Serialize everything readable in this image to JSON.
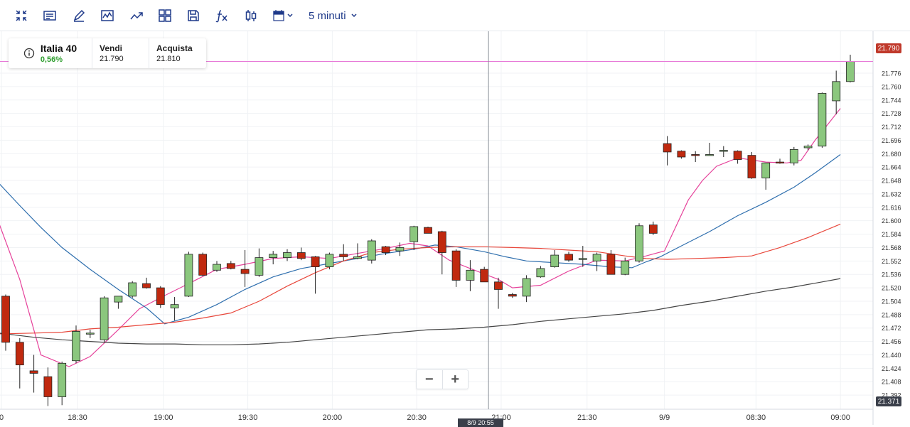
{
  "toolbar": {
    "icons": [
      "collapse-icon",
      "notes-icon",
      "draw-icon",
      "chart-type-icon",
      "trend-icon",
      "layout-icon",
      "save-icon",
      "indicator-icon",
      "candle-style-icon",
      "calendar-icon"
    ],
    "timeframe_label": "5 minuti"
  },
  "instrument": {
    "name": "Italia 40",
    "change": "0,56%",
    "sell_label": "Vendi",
    "sell_value": "21.790",
    "buy_label": "Acquista",
    "buy_value": "21.810"
  },
  "price_tag": "21.790",
  "low_tag": "21.371",
  "crosshair_time": "8/9 20:55",
  "zoom": {
    "minus": "−",
    "plus": "+"
  },
  "colors": {
    "up": "#8bc77e",
    "down": "#c0290f",
    "sma_fast": "#e6439b",
    "sma_mid": "#2f6fae",
    "sma_slow": "#e8473b",
    "sma_long": "#444444",
    "price_line": "#e77ad8"
  },
  "chart_data": {
    "type": "candlestick",
    "ylim": [
      21.371,
      21.8
    ],
    "y_ticks": [
      "21.776",
      "21.760",
      "21.744",
      "21.728",
      "21.712",
      "21.696",
      "21.680",
      "21.664",
      "21.648",
      "21.632",
      "21.616",
      "21.600",
      "21.584",
      "21.568",
      "21.552",
      "21.536",
      "21.520",
      "21.504",
      "21.488",
      "21.472",
      "21.456",
      "21.440",
      "21.424",
      "21.408",
      "21.392"
    ],
    "x_ticks": [
      {
        "label": "0",
        "index": -0.3
      },
      {
        "label": "18:30",
        "index": 5.1
      },
      {
        "label": "19:00",
        "index": 11.2
      },
      {
        "label": "19:30",
        "index": 17.2
      },
      {
        "label": "20:00",
        "index": 23.2
      },
      {
        "label": "20:30",
        "index": 29.2
      },
      {
        "label": "21:00",
        "index": 35.2
      },
      {
        "label": "21:30",
        "index": 41.3
      },
      {
        "label": "9/9",
        "index": 46.8
      },
      {
        "label": "08:30",
        "index": 53.3
      },
      {
        "label": "09:00",
        "index": 59.3
      }
    ],
    "crosshair_index": 34.3,
    "candles": [
      {
        "o": 21.51,
        "h": 21.512,
        "l": 21.445,
        "c": 21.455
      },
      {
        "o": 21.455,
        "h": 21.46,
        "l": 21.4,
        "c": 21.428
      },
      {
        "o": 21.421,
        "h": 21.44,
        "l": 21.395,
        "c": 21.418
      },
      {
        "o": 21.414,
        "h": 21.425,
        "l": 21.379,
        "c": 21.39
      },
      {
        "o": 21.39,
        "h": 21.432,
        "l": 21.38,
        "c": 21.43
      },
      {
        "o": 21.433,
        "h": 21.475,
        "l": 21.43,
        "c": 21.468
      },
      {
        "o": 21.465,
        "h": 21.47,
        "l": 21.46,
        "c": 21.466
      },
      {
        "o": 21.458,
        "h": 21.51,
        "l": 21.455,
        "c": 21.508
      },
      {
        "o": 21.503,
        "h": 21.51,
        "l": 21.495,
        "c": 21.51
      },
      {
        "o": 21.51,
        "h": 21.528,
        "l": 21.508,
        "c": 21.526
      },
      {
        "o": 21.525,
        "h": 21.532,
        "l": 21.519,
        "c": 21.52
      },
      {
        "o": 21.52,
        "h": 21.522,
        "l": 21.496,
        "c": 21.5
      },
      {
        "o": 21.496,
        "h": 21.509,
        "l": 21.481,
        "c": 21.5
      },
      {
        "o": 21.51,
        "h": 21.563,
        "l": 21.509,
        "c": 21.56
      },
      {
        "o": 21.56,
        "h": 21.562,
        "l": 21.534,
        "c": 21.535
      },
      {
        "o": 21.541,
        "h": 21.552,
        "l": 21.539,
        "c": 21.548
      },
      {
        "o": 21.549,
        "h": 21.552,
        "l": 21.542,
        "c": 21.543
      },
      {
        "o": 21.542,
        "h": 21.565,
        "l": 21.521,
        "c": 21.537
      },
      {
        "o": 21.535,
        "h": 21.567,
        "l": 21.533,
        "c": 21.556
      },
      {
        "o": 21.556,
        "h": 21.564,
        "l": 21.548,
        "c": 21.56
      },
      {
        "o": 21.556,
        "h": 21.566,
        "l": 21.552,
        "c": 21.562
      },
      {
        "o": 21.562,
        "h": 21.568,
        "l": 21.553,
        "c": 21.555
      },
      {
        "o": 21.557,
        "h": 21.558,
        "l": 21.513,
        "c": 21.545
      },
      {
        "o": 21.545,
        "h": 21.562,
        "l": 21.542,
        "c": 21.56
      },
      {
        "o": 21.56,
        "h": 21.572,
        "l": 21.552,
        "c": 21.557
      },
      {
        "o": 21.555,
        "h": 21.573,
        "l": 21.554,
        "c": 21.557
      },
      {
        "o": 21.553,
        "h": 21.578,
        "l": 21.549,
        "c": 21.576
      },
      {
        "o": 21.569,
        "h": 21.57,
        "l": 21.559,
        "c": 21.562
      },
      {
        "o": 21.564,
        "h": 21.574,
        "l": 21.558,
        "c": 21.568
      },
      {
        "o": 21.575,
        "h": 21.594,
        "l": 21.565,
        "c": 21.593
      },
      {
        "o": 21.592,
        "h": 21.593,
        "l": 21.585,
        "c": 21.585
      },
      {
        "o": 21.587,
        "h": 21.588,
        "l": 21.536,
        "c": 21.562
      },
      {
        "o": 21.564,
        "h": 21.566,
        "l": 21.521,
        "c": 21.529
      },
      {
        "o": 21.529,
        "h": 21.553,
        "l": 21.516,
        "c": 21.541
      },
      {
        "o": 21.542,
        "h": 21.545,
        "l": 21.527,
        "c": 21.527
      },
      {
        "o": 21.527,
        "h": 21.532,
        "l": 21.495,
        "c": 21.518
      },
      {
        "o": 21.512,
        "h": 21.514,
        "l": 21.508,
        "c": 21.51
      },
      {
        "o": 21.51,
        "h": 21.535,
        "l": 21.503,
        "c": 21.531
      },
      {
        "o": 21.533,
        "h": 21.546,
        "l": 21.532,
        "c": 21.543
      },
      {
        "o": 21.545,
        "h": 21.565,
        "l": 21.544,
        "c": 21.559
      },
      {
        "o": 21.56,
        "h": 21.563,
        "l": 21.551,
        "c": 21.553
      },
      {
        "o": 21.555,
        "h": 21.57,
        "l": 21.545,
        "c": 21.555
      },
      {
        "o": 21.552,
        "h": 21.562,
        "l": 21.54,
        "c": 21.56
      },
      {
        "o": 21.56,
        "h": 21.565,
        "l": 21.536,
        "c": 21.536
      },
      {
        "o": 21.536,
        "h": 21.556,
        "l": 21.535,
        "c": 21.552
      },
      {
        "o": 21.552,
        "h": 21.597,
        "l": 21.55,
        "c": 21.594
      },
      {
        "o": 21.595,
        "h": 21.599,
        "l": 21.583,
        "c": 21.585
      },
      {
        "o": 21.692,
        "h": 21.701,
        "l": 21.666,
        "c": 21.682
      },
      {
        "o": 21.683,
        "h": 21.684,
        "l": 21.674,
        "c": 21.676
      },
      {
        "o": 21.679,
        "h": 21.683,
        "l": 21.67,
        "c": 21.678
      },
      {
        "o": 21.679,
        "h": 21.693,
        "l": 21.678,
        "c": 21.679
      },
      {
        "o": 21.683,
        "h": 21.689,
        "l": 21.676,
        "c": 21.684
      },
      {
        "o": 21.683,
        "h": 21.684,
        "l": 21.668,
        "c": 21.673
      },
      {
        "o": 21.678,
        "h": 21.682,
        "l": 21.65,
        "c": 21.651
      },
      {
        "o": 21.651,
        "h": 21.669,
        "l": 21.637,
        "c": 21.669
      },
      {
        "o": 21.67,
        "h": 21.674,
        "l": 21.668,
        "c": 21.669
      },
      {
        "o": 21.669,
        "h": 21.688,
        "l": 21.666,
        "c": 21.685
      },
      {
        "o": 21.687,
        "h": 21.691,
        "l": 21.684,
        "c": 21.689
      },
      {
        "o": 21.689,
        "h": 21.753,
        "l": 21.687,
        "c": 21.752
      },
      {
        "o": 21.743,
        "h": 21.779,
        "l": 21.727,
        "c": 21.766
      },
      {
        "o": 21.766,
        "h": 21.798,
        "l": 21.765,
        "c": 21.79
      }
    ],
    "series": [
      {
        "color": "#e6439b",
        "points": [
          [
            -0.5,
            21.598
          ],
          [
            1,
            21.53
          ],
          [
            2.5,
            21.44
          ],
          [
            4.5,
            21.426
          ],
          [
            6,
            21.438
          ],
          [
            8,
            21.47
          ],
          [
            9.5,
            21.495
          ],
          [
            11.2,
            21.51
          ],
          [
            13,
            21.525
          ],
          [
            15,
            21.542
          ],
          [
            17,
            21.548
          ],
          [
            19,
            21.555
          ],
          [
            21,
            21.557
          ],
          [
            23,
            21.555
          ],
          [
            25,
            21.561
          ],
          [
            27,
            21.567
          ],
          [
            28.7,
            21.573
          ],
          [
            30,
            21.57
          ],
          [
            31.5,
            21.553
          ],
          [
            33,
            21.543
          ],
          [
            35,
            21.53
          ],
          [
            36,
            21.52
          ],
          [
            38,
            21.523
          ],
          [
            40,
            21.54
          ],
          [
            42,
            21.553
          ],
          [
            44,
            21.552
          ],
          [
            45.5,
            21.558
          ],
          [
            46.8,
            21.564
          ],
          [
            48.5,
            21.625
          ],
          [
            49.5,
            21.648
          ],
          [
            50.5,
            21.665
          ],
          [
            52,
            21.675
          ],
          [
            54,
            21.67
          ],
          [
            55.5,
            21.669
          ],
          [
            56.5,
            21.672
          ],
          [
            57.5,
            21.696
          ],
          [
            58.5,
            21.717
          ],
          [
            59.3,
            21.734
          ]
        ]
      },
      {
        "color": "#2f6fae",
        "points": [
          [
            -0.5,
            21.645
          ],
          [
            1,
            21.618
          ],
          [
            2.5,
            21.592
          ],
          [
            4,
            21.568
          ],
          [
            6,
            21.542
          ],
          [
            8,
            21.518
          ],
          [
            10,
            21.496
          ],
          [
            11.3,
            21.477
          ],
          [
            13,
            21.485
          ],
          [
            15,
            21.5
          ],
          [
            17,
            21.518
          ],
          [
            19,
            21.533
          ],
          [
            21,
            21.543
          ],
          [
            23,
            21.549
          ],
          [
            25,
            21.555
          ],
          [
            27,
            21.561
          ],
          [
            29,
            21.566
          ],
          [
            30.5,
            21.571
          ],
          [
            32,
            21.569
          ],
          [
            34,
            21.563
          ],
          [
            35.5,
            21.557
          ],
          [
            37,
            21.552
          ],
          [
            39,
            21.55
          ],
          [
            41,
            21.548
          ],
          [
            43,
            21.545
          ],
          [
            44.5,
            21.544
          ],
          [
            45.5,
            21.551
          ],
          [
            46.5,
            21.557
          ],
          [
            48,
            21.57
          ],
          [
            50,
            21.587
          ],
          [
            52,
            21.606
          ],
          [
            54,
            21.622
          ],
          [
            56,
            21.64
          ],
          [
            57.5,
            21.657
          ],
          [
            59.3,
            21.679
          ]
        ]
      },
      {
        "color": "#e8473b",
        "points": [
          [
            -0.5,
            21.465
          ],
          [
            2,
            21.466
          ],
          [
            4,
            21.467
          ],
          [
            6,
            21.471
          ],
          [
            8,
            21.473
          ],
          [
            10,
            21.476
          ],
          [
            12,
            21.479
          ],
          [
            14,
            21.484
          ],
          [
            16,
            21.49
          ],
          [
            18,
            21.504
          ],
          [
            20,
            21.522
          ],
          [
            22,
            21.538
          ],
          [
            24,
            21.552
          ],
          [
            26,
            21.562
          ],
          [
            28,
            21.566
          ],
          [
            30,
            21.568
          ],
          [
            32,
            21.569
          ],
          [
            34,
            21.569
          ],
          [
            36,
            21.568
          ],
          [
            38,
            21.567
          ],
          [
            40,
            21.565
          ],
          [
            42,
            21.563
          ],
          [
            44,
            21.558
          ],
          [
            45.5,
            21.555
          ],
          [
            47,
            21.554
          ],
          [
            49,
            21.555
          ],
          [
            51,
            21.556
          ],
          [
            53,
            21.558
          ],
          [
            55,
            21.568
          ],
          [
            57,
            21.58
          ],
          [
            59.3,
            21.596
          ]
        ]
      },
      {
        "color": "#444444",
        "points": [
          [
            -0.5,
            21.466
          ],
          [
            2,
            21.461
          ],
          [
            4,
            21.458
          ],
          [
            6,
            21.456
          ],
          [
            8,
            21.454
          ],
          [
            10,
            21.453
          ],
          [
            12,
            21.453
          ],
          [
            14,
            21.452
          ],
          [
            16,
            21.452
          ],
          [
            18,
            21.453
          ],
          [
            20,
            21.455
          ],
          [
            22,
            21.458
          ],
          [
            24,
            21.461
          ],
          [
            26,
            21.464
          ],
          [
            28,
            21.467
          ],
          [
            30,
            21.47
          ],
          [
            32,
            21.471
          ],
          [
            34,
            21.473
          ],
          [
            36,
            21.476
          ],
          [
            38,
            21.48
          ],
          [
            40,
            21.483
          ],
          [
            42,
            21.486
          ],
          [
            44,
            21.489
          ],
          [
            46,
            21.493
          ],
          [
            48,
            21.499
          ],
          [
            50,
            21.504
          ],
          [
            52,
            21.51
          ],
          [
            54,
            21.516
          ],
          [
            56,
            21.521
          ],
          [
            58,
            21.527
          ],
          [
            59.3,
            21.531
          ]
        ]
      }
    ]
  }
}
